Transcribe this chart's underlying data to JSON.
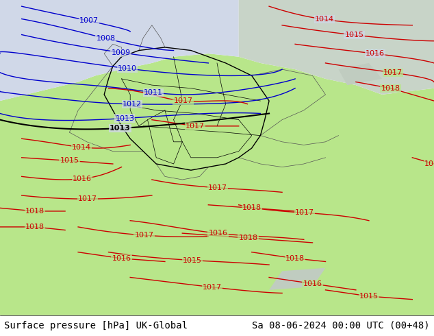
{
  "title_left": "Surface pressure [hPa] UK-Global",
  "title_right": "Sa 08-06-2024 00:00 UTC (00+48)",
  "title_fontsize": 11,
  "bg_color_land": "#b8e68a",
  "bg_color_sea": "#d0d8e8",
  "bg_color_bottom": "#ffffff",
  "contour_color_blue": "#0000cc",
  "contour_color_red": "#cc0000",
  "contour_color_black": "#000000",
  "contour_color_gray": "#888888",
  "label_fontsize": 8,
  "bottom_bar_height": 0.06
}
